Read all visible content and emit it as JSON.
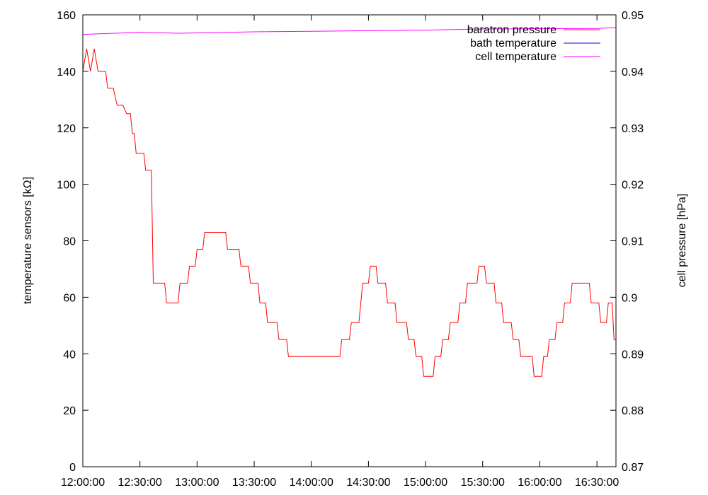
{
  "chart_data": {
    "type": "line",
    "title": "",
    "y_left": {
      "label": "temperature sensors [kΩ]",
      "range": [
        0,
        160
      ],
      "ticks": [
        0,
        20,
        40,
        60,
        80,
        100,
        120,
        140,
        160
      ],
      "tick_labels": [
        "0",
        "20",
        "40",
        "60",
        "80",
        "100",
        "120",
        "140",
        "160"
      ]
    },
    "y_right": {
      "label": "cell pressure [hPa]",
      "range": [
        0.87,
        0.95
      ],
      "ticks": [
        0.87,
        0.88,
        0.89,
        0.9,
        0.91,
        0.92,
        0.93,
        0.94,
        0.95
      ],
      "tick_labels": [
        "0.87",
        "0.88",
        "0.89",
        "0.9",
        "0.91",
        "0.92",
        "0.93",
        "0.94",
        "0.95"
      ]
    },
    "x": {
      "label": "",
      "range": [
        "12:00:00",
        "16:40:00"
      ],
      "ticks": [
        "12:00:00",
        "12:30:00",
        "13:00:00",
        "13:30:00",
        "14:00:00",
        "14:30:00",
        "15:00:00",
        "15:30:00",
        "16:00:00",
        "16:30:00"
      ],
      "tick_labels": [
        "12:00:00",
        "12:30:00",
        "13:00:00",
        "13:30:00",
        "14:00:00",
        "14:30:00",
        "15:00:00",
        "15:30:00",
        "16:00:00",
        "16:30:00"
      ]
    },
    "legend": {
      "position": "top-right"
    },
    "grid": false,
    "series": [
      {
        "name": "baratron pressure",
        "color": "#ff0000",
        "axis": "right",
        "points": [
          [
            "12:00:00",
            0.94
          ],
          [
            "12:02:00",
            0.944
          ],
          [
            "12:04:00",
            0.94
          ],
          [
            "12:06:00",
            0.944
          ],
          [
            "12:08:00",
            0.94
          ],
          [
            "12:12:00",
            0.94
          ],
          [
            "12:13:00",
            0.937
          ],
          [
            "12:16:00",
            0.937
          ],
          [
            "12:18:00",
            0.934
          ],
          [
            "12:21:00",
            0.934
          ],
          [
            "12:23:00",
            0.9325
          ],
          [
            "12:25:00",
            0.9325
          ],
          [
            "12:26:00",
            0.929
          ],
          [
            "12:27:00",
            0.929
          ],
          [
            "12:28:00",
            0.9255
          ],
          [
            "12:32:00",
            0.9255
          ],
          [
            "12:33:00",
            0.9225
          ],
          [
            "12:36:00",
            0.9225
          ],
          [
            "12:37:00",
            0.9025
          ],
          [
            "12:43:00",
            0.9025
          ],
          [
            "12:44:00",
            0.899
          ],
          [
            "12:50:00",
            0.899
          ],
          [
            "12:51:00",
            0.9025
          ],
          [
            "12:55:00",
            0.9025
          ],
          [
            "12:56:00",
            0.9055
          ],
          [
            "12:59:00",
            0.9055
          ],
          [
            "13:00:00",
            0.9085
          ],
          [
            "13:03:00",
            0.9085
          ],
          [
            "13:04:00",
            0.9115
          ],
          [
            "13:15:00",
            0.9115
          ],
          [
            "13:16:00",
            0.9085
          ],
          [
            "13:22:00",
            0.9085
          ],
          [
            "13:23:00",
            0.9055
          ],
          [
            "13:27:00",
            0.9055
          ],
          [
            "13:28:00",
            0.9025
          ],
          [
            "13:32:00",
            0.9025
          ],
          [
            "13:33:00",
            0.899
          ],
          [
            "13:36:00",
            0.899
          ],
          [
            "13:37:00",
            0.8955
          ],
          [
            "13:42:00",
            0.8955
          ],
          [
            "13:43:00",
            0.8925
          ],
          [
            "13:47:00",
            0.8925
          ],
          [
            "13:48:00",
            0.8895
          ],
          [
            "14:15:00",
            0.8895
          ],
          [
            "14:16:00",
            0.8925
          ],
          [
            "14:20:00",
            0.8925
          ],
          [
            "14:21:00",
            0.8955
          ],
          [
            "14:25:00",
            0.8955
          ],
          [
            "14:26:00",
            0.899
          ],
          [
            "14:27:00",
            0.9025
          ],
          [
            "14:30:00",
            0.9025
          ],
          [
            "14:31:00",
            0.9055
          ],
          [
            "14:34:00",
            0.9055
          ],
          [
            "14:35:00",
            0.9025
          ],
          [
            "14:39:00",
            0.9025
          ],
          [
            "14:40:00",
            0.899
          ],
          [
            "14:44:00",
            0.899
          ],
          [
            "14:45:00",
            0.8955
          ],
          [
            "14:50:00",
            0.8955
          ],
          [
            "14:51:00",
            0.8925
          ],
          [
            "14:54:00",
            0.8925
          ],
          [
            "14:55:00",
            0.8895
          ],
          [
            "14:58:00",
            0.8895
          ],
          [
            "14:59:00",
            0.886
          ],
          [
            "15:04:00",
            0.886
          ],
          [
            "15:05:00",
            0.8895
          ],
          [
            "15:08:00",
            0.8895
          ],
          [
            "15:09:00",
            0.8925
          ],
          [
            "15:12:00",
            0.8925
          ],
          [
            "15:13:00",
            0.8955
          ],
          [
            "15:17:00",
            0.8955
          ],
          [
            "15:18:00",
            0.899
          ],
          [
            "15:21:00",
            0.899
          ],
          [
            "15:22:00",
            0.9025
          ],
          [
            "15:27:00",
            0.9025
          ],
          [
            "15:28:00",
            0.9055
          ],
          [
            "15:31:00",
            0.9055
          ],
          [
            "15:32:00",
            0.9025
          ],
          [
            "15:36:00",
            0.9025
          ],
          [
            "15:37:00",
            0.899
          ],
          [
            "15:40:00",
            0.899
          ],
          [
            "15:41:00",
            0.8955
          ],
          [
            "15:45:00",
            0.8955
          ],
          [
            "15:46:00",
            0.8925
          ],
          [
            "15:49:00",
            0.8925
          ],
          [
            "15:50:00",
            0.8895
          ],
          [
            "15:56:00",
            0.8895
          ],
          [
            "15:57:00",
            0.886
          ],
          [
            "16:01:00",
            0.886
          ],
          [
            "16:02:00",
            0.8895
          ],
          [
            "16:04:00",
            0.8895
          ],
          [
            "16:05:00",
            0.8925
          ],
          [
            "16:08:00",
            0.8925
          ],
          [
            "16:09:00",
            0.8955
          ],
          [
            "16:12:00",
            0.8955
          ],
          [
            "16:13:00",
            0.899
          ],
          [
            "16:16:00",
            0.899
          ],
          [
            "16:17:00",
            0.9025
          ],
          [
            "16:26:00",
            0.9025
          ],
          [
            "16:27:00",
            0.899
          ],
          [
            "16:31:00",
            0.899
          ],
          [
            "16:32:00",
            0.8955
          ],
          [
            "16:35:00",
            0.8955
          ],
          [
            "16:36:00",
            0.899
          ],
          [
            "16:38:00",
            0.899
          ],
          [
            "16:39:00",
            0.8925
          ],
          [
            "16:40:00",
            0.8925
          ]
        ]
      },
      {
        "name": "bath temperature",
        "color": "#0000ff",
        "axis": "left",
        "points": []
      },
      {
        "name": "cell temperature",
        "color": "#ff00ff",
        "axis": "left",
        "points": [
          [
            "12:00:00",
            153.1
          ],
          [
            "12:30:00",
            153.8
          ],
          [
            "12:50:00",
            153.5
          ],
          [
            "13:30:00",
            154.0
          ],
          [
            "14:00:00",
            154.2
          ],
          [
            "14:30:00",
            154.4
          ],
          [
            "15:00:00",
            154.6
          ],
          [
            "15:30:00",
            155.0
          ],
          [
            "16:00:00",
            155.1
          ],
          [
            "16:30:00",
            155.2
          ],
          [
            "16:40:00",
            155.5
          ]
        ]
      }
    ]
  }
}
